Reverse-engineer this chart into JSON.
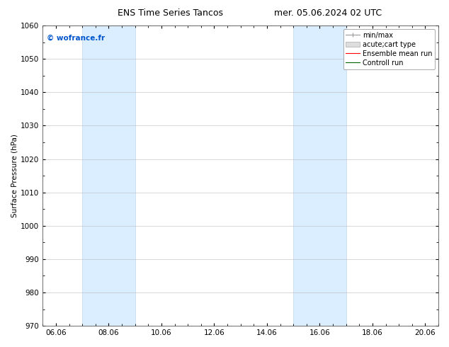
{
  "title_left": "ENS Time Series Tancos",
  "title_right": "mer. 05.06.2024 02 UTC",
  "ylabel": "Surface Pressure (hPa)",
  "ylim": [
    970,
    1060
  ],
  "yticks": [
    970,
    980,
    990,
    1000,
    1010,
    1020,
    1030,
    1040,
    1050,
    1060
  ],
  "xtick_labels": [
    "06.06",
    "08.06",
    "10.06",
    "12.06",
    "14.06",
    "16.06",
    "18.06",
    "20.06"
  ],
  "xtick_positions": [
    0.5,
    2.5,
    4.5,
    6.5,
    8.5,
    10.5,
    12.5,
    14.5
  ],
  "shaded_regions": [
    {
      "xmin": 1.5,
      "xmax": 3.5
    },
    {
      "xmin": 9.5,
      "xmax": 11.5
    }
  ],
  "shaded_color": "#daeeff",
  "shaded_edge_color": "#c0d8ee",
  "watermark": "© wofrance.fr",
  "watermark_color": "#0055cc",
  "xlim": [
    0,
    15
  ],
  "background_color": "#ffffff",
  "grid_color": "#bbbbbb",
  "tick_label_fontsize": 7.5,
  "title_fontsize": 9,
  "ylabel_fontsize": 7.5,
  "watermark_fontsize": 7.5,
  "legend_fontsize": 7
}
